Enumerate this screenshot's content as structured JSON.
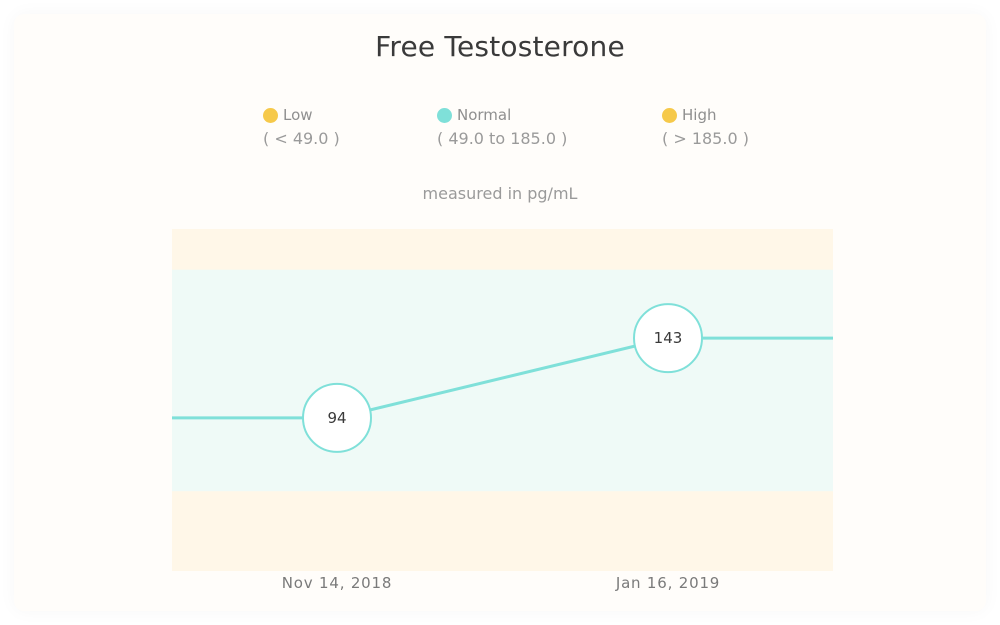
{
  "title": "Free Testosterone",
  "unit_label": "measured in pg/mL",
  "legend": [
    {
      "label": "Low",
      "range": "( < 49.0 )",
      "color": "#f6c94a"
    },
    {
      "label": "Normal",
      "range": "( 49.0 to 185.0 )",
      "color": "#7fe0d9"
    },
    {
      "label": "High",
      "range": "( > 185.0 )",
      "color": "#f6c94a"
    }
  ],
  "colors": {
    "line": "#7fe0d9",
    "normal_band": "#effaf7",
    "outer_band": "#fff7e8",
    "card": "#fffdfa"
  },
  "chart_data": {
    "type": "line",
    "x": [
      "Nov 14, 2018",
      "Jan 16, 2019"
    ],
    "values": [
      94,
      143
    ],
    "labels": [
      "94",
      "143"
    ],
    "ranges": {
      "low_max": 49.0,
      "normal_min": 49.0,
      "normal_max": 185.0
    },
    "ylim": [
      0,
      210
    ],
    "ylabel": "measured in pg/mL",
    "grid": false
  }
}
